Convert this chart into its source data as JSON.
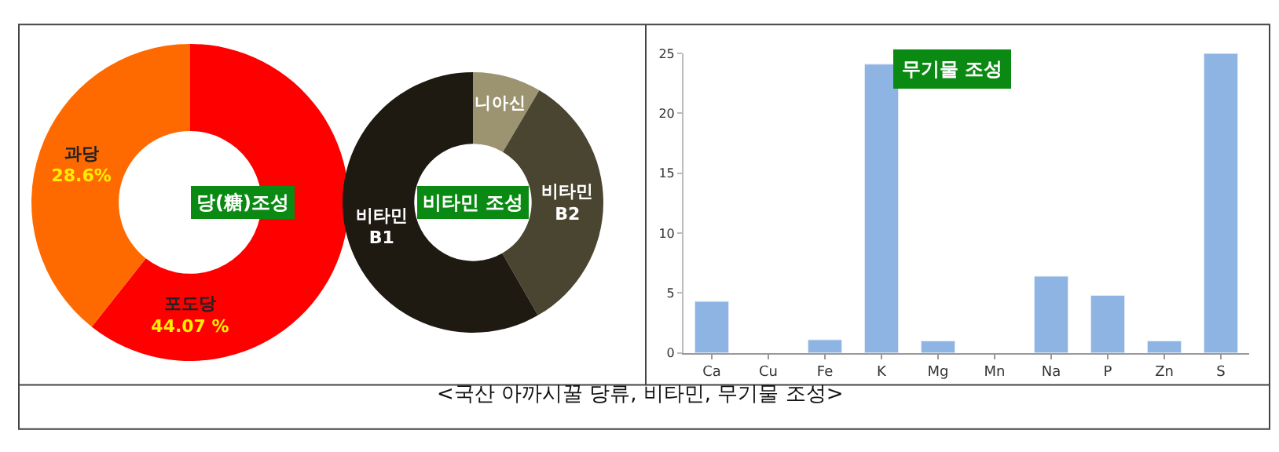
{
  "chart_data": [
    {
      "type": "donut",
      "title": "당(糖)조성",
      "categories": [
        "포도당",
        "과당"
      ],
      "values": [
        44.07,
        28.6
      ],
      "value_labels": [
        "44.07 %",
        "28.6%"
      ],
      "colors": [
        "#ff0000",
        "#ff6a00"
      ]
    },
    {
      "type": "donut",
      "title": "비타민 조성",
      "categories": [
        "니아신",
        "비타민\nB2",
        "비타민\nB1"
      ],
      "values": [
        8.5,
        33.2,
        58.3
      ],
      "colors": [
        "#9c9470",
        "#4a4530",
        "#1e1a12"
      ]
    },
    {
      "type": "bar",
      "title": "무기물 조성",
      "categories": [
        "Ca",
        "Cu",
        "Fe",
        "K",
        "Mg",
        "Mn",
        "Na",
        "P",
        "Zn",
        "S"
      ],
      "values": [
        4.3,
        null,
        1.1,
        24.1,
        1.0,
        null,
        6.4,
        4.8,
        1.0,
        25.0
      ],
      "color": "#8db4e2",
      "ylim": [
        0,
        25
      ],
      "yticks": [
        0,
        5,
        10,
        15,
        20,
        25
      ],
      "annotations": [
        "<국산 아까시꿀 당류, 비타민, 무기물 조성>"
      ]
    }
  ]
}
